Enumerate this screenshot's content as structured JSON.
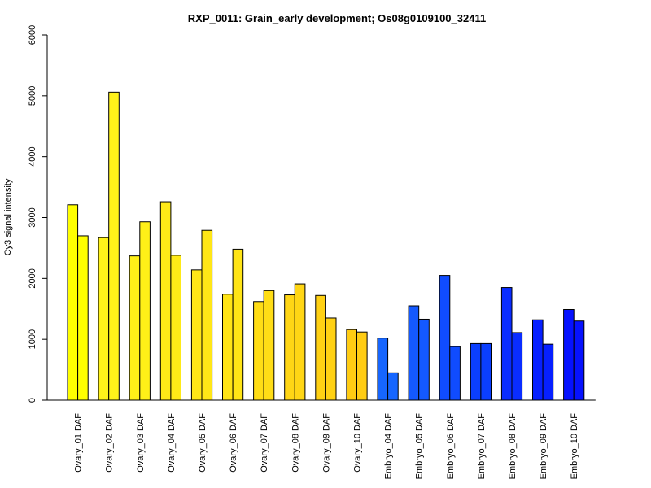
{
  "chart_data": {
    "type": "bar",
    "title": "RXP_0011: Grain_early development; Os08g0109100_32411",
    "xlabel": "",
    "ylabel": "Cy3 signal intensity",
    "ylim": [
      0,
      6000
    ],
    "yticks": [
      0,
      1000,
      2000,
      3000,
      4000,
      5000,
      6000
    ],
    "categories": [
      "Ovary_01 DAF",
      "Ovary_02 DAF",
      "Ovary_03 DAF",
      "Ovary_04 DAF",
      "Ovary_05 DAF",
      "Ovary_06 DAF",
      "Ovary_07 DAF",
      "Ovary_08 DAF",
      "Ovary_09 DAF",
      "Ovary_10 DAF",
      "Embryo_04 DAF",
      "Embryo_05 DAF",
      "Embryo_06 DAF",
      "Embryo_07 DAF",
      "Embryo_08 DAF",
      "Embryo_09 DAF",
      "Embryo_10 DAF"
    ],
    "bar_colors": [
      "#FFFF00",
      "#FFF21A",
      "#FFF018",
      "#FFEA17",
      "#FFE617",
      "#FFE416",
      "#FFDD16",
      "#FFD615",
      "#FFD114",
      "#FFCC13",
      "#1666FF",
      "#1459FF",
      "#104CFF",
      "#0B3FFF",
      "#0A2DFF",
      "#0720FF",
      "#0612FF"
    ],
    "series": [
      {
        "values": [
          3210,
          2670,
          2370,
          3260,
          2140,
          1740,
          1620,
          1730,
          1720,
          1160,
          1020,
          1550,
          2050,
          930,
          1850,
          1320,
          1490
        ]
      },
      {
        "values": [
          2700,
          5060,
          2930,
          2380,
          2790,
          2480,
          1800,
          1910,
          1350,
          1120,
          450,
          1330,
          880,
          930,
          1110,
          920,
          1300
        ]
      }
    ],
    "grid": false,
    "legend": "none"
  }
}
